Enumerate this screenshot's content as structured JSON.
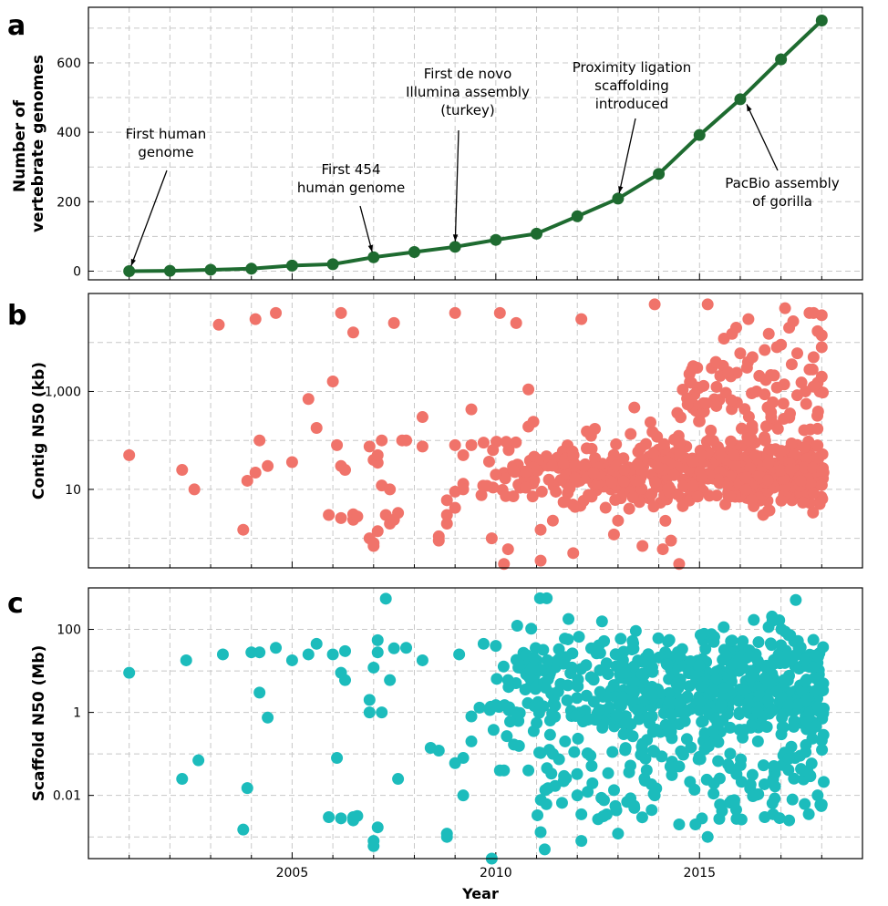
{
  "x_axis": {
    "label": "Year",
    "ticks": [
      2005,
      2010,
      2015
    ],
    "range": [
      2000,
      2019
    ]
  },
  "chart_data": [
    {
      "type": "line",
      "panel": "a",
      "ylabel": [
        "Number of",
        "vertebrate genomes"
      ],
      "ylim": [
        -25,
        760
      ],
      "yticks": [
        0,
        200,
        400,
        600
      ],
      "color": "#1e6b30",
      "x": [
        2001,
        2002,
        2003,
        2004,
        2005,
        2006,
        2007,
        2008,
        2009,
        2010,
        2011,
        2012,
        2013,
        2014,
        2015,
        2016,
        2017,
        2018
      ],
      "values": [
        0,
        1,
        4,
        7,
        16,
        20,
        40,
        55,
        70,
        90,
        108,
        158,
        209,
        280,
        392,
        495,
        610,
        722
      ],
      "annotations": [
        {
          "lines": [
            "First human",
            "genome"
          ],
          "x": 2001,
          "y": 0
        },
        {
          "lines": [
            "First 454",
            "human genome"
          ],
          "x": 2007,
          "y": 40
        },
        {
          "lines": [
            "First de novo",
            "Illumina assembly",
            "(turkey)"
          ],
          "x": 2009,
          "y": 70
        },
        {
          "lines": [
            "Proximity ligation",
            "scaffolding",
            "introduced"
          ],
          "x": 2013,
          "y": 209
        },
        {
          "lines": [
            "PacBio assembly",
            "of gorilla"
          ],
          "x": 2016.1,
          "y": 495
        }
      ]
    },
    {
      "type": "scatter",
      "panel": "b",
      "ylabel": "Contig N50 (kb)",
      "yscale": "log",
      "ylim": [
        0.25,
        100000
      ],
      "yticks": [
        10,
        1000
      ],
      "ytick_labels": [
        "10",
        "1,000"
      ],
      "color": "#f0736a",
      "points": [
        [
          2001,
          50
        ],
        [
          2002.3,
          25
        ],
        [
          2002.6,
          10
        ],
        [
          2003.2,
          23000
        ],
        [
          2003.8,
          1.5
        ],
        [
          2003.9,
          15
        ],
        [
          2004.1,
          22
        ],
        [
          2004.1,
          30000
        ],
        [
          2004.2,
          100
        ],
        [
          2004.4,
          30
        ],
        [
          2004.6,
          40000
        ],
        [
          2005,
          36
        ],
        [
          2005.4,
          700
        ],
        [
          2005.6,
          180
        ],
        [
          2005.9,
          3
        ],
        [
          2006,
          1600
        ],
        [
          2006.1,
          80
        ],
        [
          2006.2,
          30
        ],
        [
          2006.2,
          2.6
        ],
        [
          2006.2,
          40000
        ],
        [
          2006.3,
          25
        ],
        [
          2006.5,
          2.4
        ],
        [
          2006.5,
          3.1
        ],
        [
          2006.5,
          16000
        ],
        [
          2006.6,
          2.8
        ],
        [
          2006.9,
          75
        ],
        [
          2006.9,
          1
        ],
        [
          2007,
          0.7
        ],
        [
          2007,
          0.8
        ],
        [
          2007,
          40
        ],
        [
          2007.1,
          35
        ],
        [
          2007.1,
          50
        ],
        [
          2007.1,
          1.4
        ],
        [
          2007.2,
          100
        ],
        [
          2007.2,
          12
        ],
        [
          2007.3,
          3
        ],
        [
          2007.4,
          2
        ],
        [
          2007.4,
          10
        ],
        [
          2007.5,
          25000
        ],
        [
          2007.5,
          2.4
        ],
        [
          2007.6,
          3.3
        ],
        [
          2007.7,
          100
        ],
        [
          2007.8,
          100
        ],
        [
          2008.2,
          75
        ],
        [
          2008.2,
          300
        ],
        [
          2008.6,
          0.9
        ],
        [
          2008.6,
          1.1
        ],
        [
          2008.8,
          6
        ],
        [
          2008.8,
          3
        ],
        [
          2008.8,
          2
        ],
        [
          2009,
          80
        ],
        [
          2009,
          9
        ],
        [
          2009,
          40000
        ],
        [
          2009,
          4.2
        ],
        [
          2009.2,
          13
        ],
        [
          2009.2,
          50
        ],
        [
          2009.2,
          10
        ],
        [
          2009.4,
          80
        ],
        [
          2009.4,
          430
        ],
        [
          2009.7,
          90
        ],
        [
          2009.9,
          1
        ],
        [
          2010,
          20
        ],
        [
          2010.1,
          40000
        ],
        [
          2010.2,
          0.3
        ],
        [
          2010.3,
          0.6
        ],
        [
          2010.5,
          25000
        ],
        [
          2010.8,
          1100
        ],
        [
          2011.1,
          0.35
        ],
        [
          2011.1,
          1.5
        ],
        [
          2011.4,
          2.3
        ],
        [
          2011.9,
          0.5
        ],
        [
          2012.1,
          30000
        ],
        [
          2013.4,
          470
        ],
        [
          2013.9,
          60000
        ],
        [
          2015.2,
          60000
        ],
        [
          2016.2,
          30000
        ],
        [
          2016.3,
          5000
        ],
        [
          2016.6,
          7000
        ],
        [
          2016.7,
          15000
        ],
        [
          2016.9,
          1200
        ],
        [
          2016.9,
          8000
        ],
        [
          2017.1,
          50000
        ],
        [
          2017.3,
          27000
        ],
        [
          2017.4,
          6000
        ],
        [
          2017.6,
          1000
        ],
        [
          2017.7,
          2800
        ],
        [
          2017.7,
          40000
        ],
        [
          2017.8,
          5000
        ],
        [
          2017.8,
          40000
        ],
        [
          2017.9,
          1500
        ],
        [
          2017.9,
          17000
        ],
        [
          2018,
          8000
        ],
        [
          2018,
          14000
        ],
        [
          2018,
          2000
        ],
        [
          2018,
          36000
        ],
        [
          2015.3,
          3000
        ],
        [
          2015.4,
          4000
        ],
        [
          2015.6,
          12000
        ],
        [
          2015.8,
          15000
        ],
        [
          2015.9,
          20000
        ],
        [
          2016,
          6000
        ],
        [
          2015.1,
          1300
        ],
        [
          2015.7,
          2500
        ],
        [
          2016.4,
          1000
        ],
        [
          2016.8,
          600
        ],
        [
          2017,
          9000
        ],
        [
          2017.2,
          20000
        ],
        [
          2014.5,
          0.3
        ],
        [
          2014.8,
          1500
        ],
        [
          2013.6,
          0.7
        ],
        [
          2014.1,
          0.6
        ],
        [
          2014.3,
          0.9
        ],
        [
          2012.9,
          1.2
        ],
        [
          2013,
          2.3
        ]
      ],
      "background_cluster": {
        "n": 560,
        "seed": 7,
        "x_range": [
          2009.6,
          2018.05
        ],
        "y_log10_center": 1.35,
        "y_log10_spread": 0.33,
        "upper_tail": {
          "n": 70,
          "x_range": [
            2014.4,
            2018.05
          ],
          "y_log10_range": [
            2.2,
            3.6
          ]
        }
      }
    },
    {
      "type": "scatter",
      "panel": "c",
      "ylabel": "Scaffold N50 (Mb)",
      "yscale": "log",
      "ylim": [
        0.0003,
        1000
      ],
      "yticks": [
        0.01,
        1,
        100
      ],
      "ytick_labels": [
        "0.01",
        "1",
        "100"
      ],
      "color": "#1cbcbc",
      "points": [
        [
          2001,
          9
        ],
        [
          2002.3,
          0.025
        ],
        [
          2002.4,
          18
        ],
        [
          2002.7,
          0.07
        ],
        [
          2003.3,
          25
        ],
        [
          2003.8,
          0.0015
        ],
        [
          2003.9,
          0.015
        ],
        [
          2004,
          28
        ],
        [
          2004.2,
          3
        ],
        [
          2004.2,
          28
        ],
        [
          2004.4,
          0.75
        ],
        [
          2004.6,
          36
        ],
        [
          2005,
          18
        ],
        [
          2005.4,
          25
        ],
        [
          2005.6,
          45
        ],
        [
          2005.9,
          0.003
        ],
        [
          2006,
          25
        ],
        [
          2006.1,
          0.08
        ],
        [
          2006.2,
          0.0028
        ],
        [
          2006.2,
          9
        ],
        [
          2006.3,
          6
        ],
        [
          2006.3,
          30
        ],
        [
          2006.5,
          0.0025
        ],
        [
          2006.5,
          0.003
        ],
        [
          2006.6,
          0.0032
        ],
        [
          2006.9,
          2
        ],
        [
          2006.9,
          1
        ],
        [
          2007,
          0.0008
        ],
        [
          2007,
          0.0006
        ],
        [
          2007,
          12
        ],
        [
          2007.1,
          0.0017
        ],
        [
          2007.1,
          28
        ],
        [
          2007.1,
          55
        ],
        [
          2007.2,
          1
        ],
        [
          2007.3,
          550
        ],
        [
          2007.4,
          6
        ],
        [
          2007.5,
          35
        ],
        [
          2007.6,
          0.025
        ],
        [
          2007.8,
          36
        ],
        [
          2008.2,
          18
        ],
        [
          2008.4,
          0.14
        ],
        [
          2008.6,
          0.12
        ],
        [
          2008.8,
          0.0012
        ],
        [
          2008.8,
          0.001
        ],
        [
          2009,
          0.06
        ],
        [
          2009.1,
          25
        ],
        [
          2009.2,
          0.08
        ],
        [
          2009.2,
          0.01
        ],
        [
          2009.4,
          0.2
        ],
        [
          2009.4,
          0.8
        ],
        [
          2009.6,
          1.3
        ],
        [
          2009.7,
          45
        ],
        [
          2009.9,
          0.0003
        ],
        [
          2010,
          1.5
        ],
        [
          2010,
          40
        ],
        [
          2010.1,
          0.04
        ],
        [
          2010.2,
          0.04
        ],
        [
          2010.3,
          6
        ],
        [
          2010.5,
          1
        ],
        [
          2010.8,
          0.04
        ],
        [
          2011.1,
          0.0013
        ],
        [
          2011.2,
          0.0005
        ],
        [
          2011.4,
          0.1
        ],
        [
          2011.7,
          0.2
        ],
        [
          2012,
          0.01
        ],
        [
          2012.1,
          0.0035
        ],
        [
          2012.1,
          0.0008
        ],
        [
          2013,
          0.0012
        ],
        [
          2013.4,
          0.005
        ],
        [
          2013.9,
          0.01
        ],
        [
          2014.5,
          0.002
        ],
        [
          2014.9,
          0.002
        ],
        [
          2015.2,
          0.001
        ],
        [
          2015.9,
          0.0045
        ],
        [
          2016.6,
          0.003
        ],
        [
          2017.2,
          0.0025
        ],
        [
          2017.9,
          0.01
        ],
        [
          2018,
          0.006
        ]
      ],
      "background_cluster": {
        "n": 620,
        "seed": 11,
        "x_range": [
          2009.8,
          2018.05
        ],
        "y_log10_center": 0.6,
        "y_log10_spread": 0.75,
        "lower_tail": {
          "n": 120,
          "x_range": [
            2011,
            2018.05
          ],
          "y_log10_range": [
            -2.6,
            -0.8
          ]
        }
      }
    }
  ]
}
